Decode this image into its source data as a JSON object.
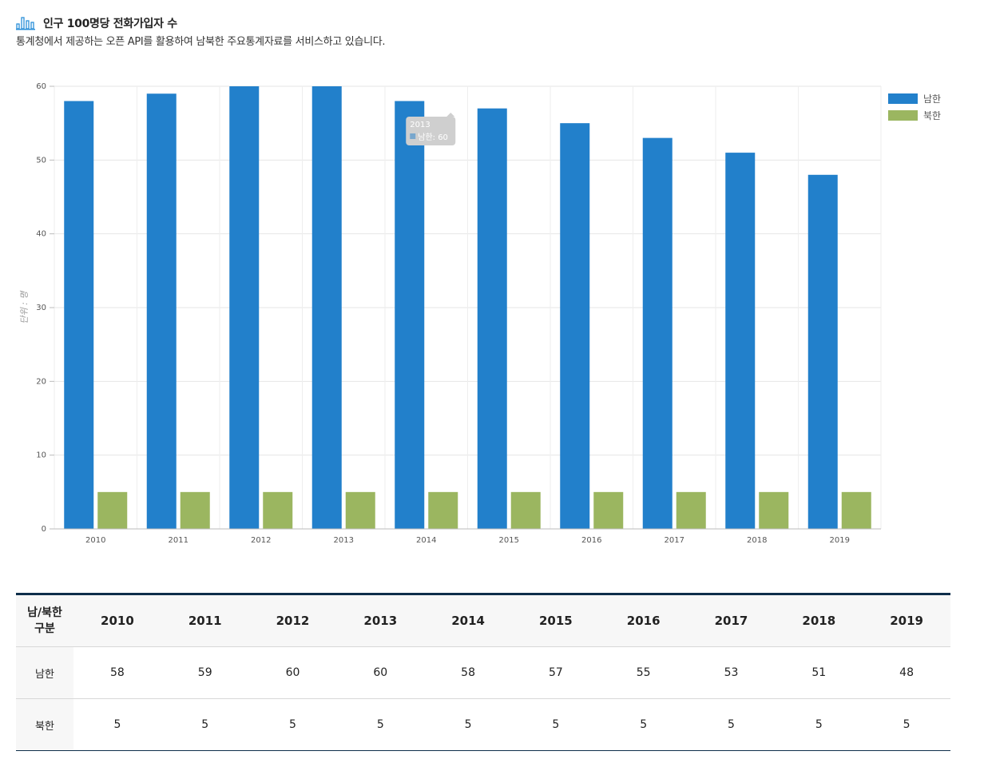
{
  "header": {
    "title": "인구 100명당 전화가입자 수",
    "subtitle": "통계청에서 제공하는 오픈 API를 활용하여 남북한 주요통계자료를 서비스하고 있습니다.",
    "icon": "bar-chart-icon"
  },
  "colors": {
    "south": "#2280cb",
    "north": "#9bb660",
    "icon": "#2a8fd8",
    "table_border": "#0e2e4a"
  },
  "chart_data": {
    "type": "bar",
    "categories": [
      "2010",
      "2011",
      "2012",
      "2013",
      "2014",
      "2015",
      "2016",
      "2017",
      "2018",
      "2019"
    ],
    "series": [
      {
        "name": "남한",
        "values": [
          58,
          59,
          60,
          60,
          58,
          57,
          55,
          53,
          51,
          48
        ]
      },
      {
        "name": "북한",
        "values": [
          5,
          5,
          5,
          5,
          5,
          5,
          5,
          5,
          5,
          5
        ]
      }
    ],
    "ylabel": "단위 : 명",
    "ylim": [
      0,
      60
    ],
    "yticks": [
      0,
      10,
      20,
      30,
      40,
      50,
      60
    ],
    "grid": true,
    "legend": "top-right",
    "tooltip": {
      "category": "2013",
      "text": "남한: 60"
    }
  },
  "table": {
    "header_label_line1": "남/북한",
    "header_label_line2": "구분",
    "years": [
      "2010",
      "2011",
      "2012",
      "2013",
      "2014",
      "2015",
      "2016",
      "2017",
      "2018",
      "2019"
    ],
    "rows": [
      {
        "label": "남한",
        "values": [
          "58",
          "59",
          "60",
          "60",
          "58",
          "57",
          "55",
          "53",
          "51",
          "48"
        ]
      },
      {
        "label": "북한",
        "values": [
          "5",
          "5",
          "5",
          "5",
          "5",
          "5",
          "5",
          "5",
          "5",
          "5"
        ]
      }
    ]
  }
}
